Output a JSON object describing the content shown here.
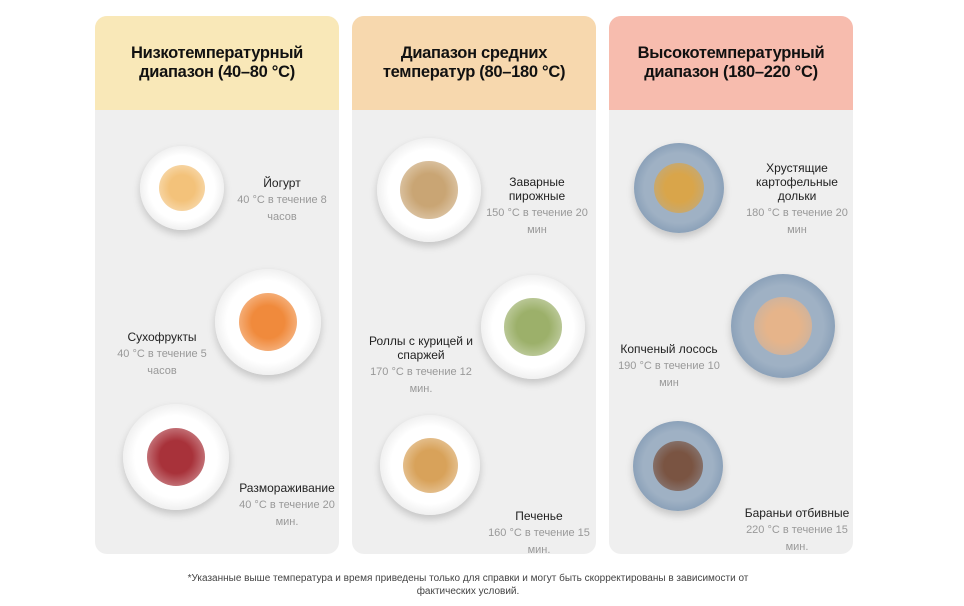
{
  "columns": [
    {
      "title": "Низкотемпературный диапазон (40–80 °C)",
      "color": "#f9e8b8",
      "items": [
        {
          "name": "Йогурт",
          "desc": "40 °C в течение 8 часов"
        },
        {
          "name": "Сухофрукты",
          "desc": "40 °C в течение 5 часов"
        },
        {
          "name": "Размораживание",
          "desc": "40 °C в течение 20 мин."
        }
      ]
    },
    {
      "title": "Диапазон средних температур (80–180 °C)",
      "color": "#f7d8ae",
      "items": [
        {
          "name": "Заварные пирожные",
          "desc": "150 °C в течение 20 мин"
        },
        {
          "name": "Роллы с курицей и спаржей",
          "desc": "170 °C в течение 12 мин."
        },
        {
          "name": "Печенье",
          "desc": "160 °C в течение 15 мин."
        }
      ]
    },
    {
      "title": "Высокотемпературный диапазон (180–220 °C)",
      "color": "#f7bcae",
      "items": [
        {
          "name": "Хрустящие картофельные дольки",
          "desc": "180 °C в течение 20 мин"
        },
        {
          "name": "Копченый лосось",
          "desc": "190 °C в течение 10 мин"
        },
        {
          "name": "Бараньи отбивные",
          "desc": "220 °C в течение 15 мин."
        }
      ]
    }
  ],
  "footnote": "*Указанные выше температура и время приведены только для справки и могут быть скорректированы в зависимости от фактических условий."
}
